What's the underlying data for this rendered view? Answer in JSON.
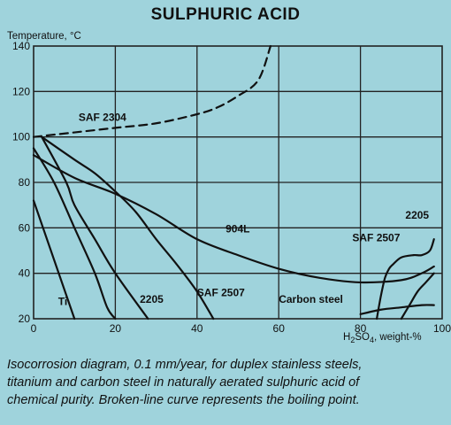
{
  "chart_data": {
    "type": "line",
    "title": "SULPHURIC ACID",
    "ylabel": "Temperature, °C",
    "xlabel_prefix": "H",
    "xlabel_sub1": "2",
    "xlabel_mid": "SO",
    "xlabel_sub2": "4",
    "xlabel_suffix": ", weight-%",
    "xlim": [
      0,
      100
    ],
    "ylim": [
      20,
      140
    ],
    "xticks": [
      0,
      20,
      40,
      60,
      80,
      100
    ],
    "yticks": [
      20,
      40,
      60,
      80,
      100,
      120,
      140
    ],
    "grid": true,
    "series": [
      {
        "name": "Ti",
        "style": "solid",
        "x": [
          0,
          10
        ],
        "y": [
          72,
          20
        ],
        "label_at": [
          6,
          26
        ]
      },
      {
        "name": "2205",
        "style": "solid",
        "x": [
          0,
          5,
          10,
          15,
          18,
          20
        ],
        "y": [
          95,
          80,
          60,
          40,
          25,
          20
        ],
        "label_at": [
          26,
          27
        ]
      },
      {
        "name": "SAF 2304",
        "style": "solid",
        "x": [
          2,
          8,
          10,
          15,
          20,
          28
        ],
        "y": [
          100,
          80,
          70,
          55,
          40,
          20
        ],
        "label_at": [
          11,
          107
        ]
      },
      {
        "name": "SAF 2507",
        "style": "solid",
        "x": [
          2,
          10,
          15,
          20,
          25,
          30,
          35,
          40,
          44
        ],
        "y": [
          100,
          90,
          84,
          76,
          67,
          55,
          44,
          32,
          20
        ],
        "label_at": [
          40,
          30
        ]
      },
      {
        "name": "904L",
        "style": "solid",
        "x": [
          0,
          10,
          20,
          30,
          40,
          50,
          60,
          70,
          80,
          90,
          95,
          98
        ],
        "y": [
          92,
          82,
          75,
          66,
          55,
          48,
          42,
          38,
          36,
          37,
          40,
          43
        ],
        "label_at": [
          47,
          58
        ]
      },
      {
        "name": "SAF 2507",
        "style": "solid",
        "x": [
          84,
          85,
          86,
          87,
          88,
          90,
          93,
          95,
          97,
          98
        ],
        "y": [
          20,
          30,
          38,
          42,
          44,
          47,
          48,
          48,
          50,
          55
        ],
        "label_at": [
          78,
          54
        ]
      },
      {
        "name": "2205",
        "style": "solid",
        "x": [
          90,
          92,
          94,
          96,
          98
        ],
        "y": [
          20,
          26,
          32,
          36,
          40
        ],
        "label_at": [
          91,
          64
        ]
      },
      {
        "name": "Carbon steel",
        "style": "solid",
        "x": [
          80,
          85,
          90,
          95,
          98
        ],
        "y": [
          22,
          24,
          25,
          26,
          26
        ],
        "label_at": [
          60,
          27
        ]
      },
      {
        "name": "Boiling point",
        "style": "dashed",
        "x": [
          0,
          10,
          20,
          30,
          40,
          45,
          50,
          55,
          58
        ],
        "y": [
          100,
          102,
          104,
          106,
          110,
          113,
          118,
          125,
          140
        ],
        "label_at": null
      }
    ]
  },
  "caption": "Isocorrosion diagram, 0.1 mm/year, for duplex stainless steels,\ntitanium and carbon steel in naturally aerated sulphuric acid of\nchemical purity. Broken-line curve represents the boiling point."
}
